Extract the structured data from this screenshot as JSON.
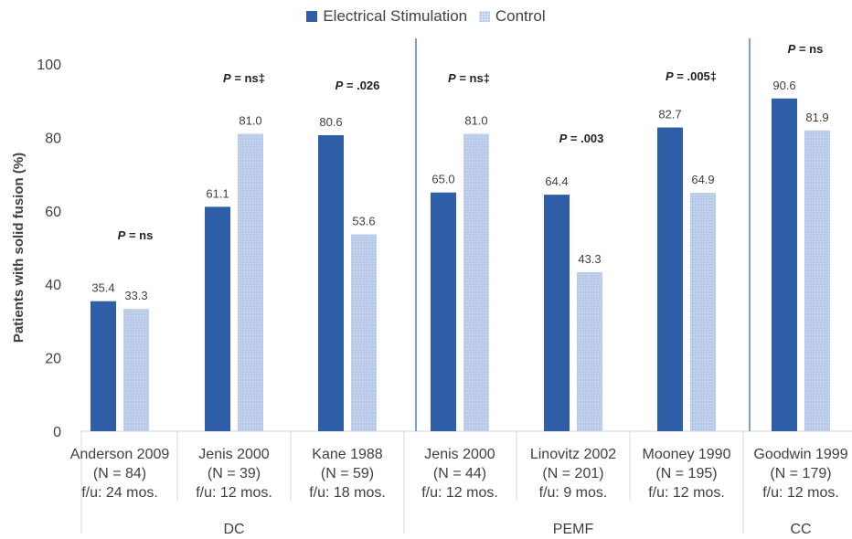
{
  "legend": {
    "series1": "Electrical Stimulation",
    "series2": "Control"
  },
  "colors": {
    "electrical_stimulation": "#2e5ea8",
    "control": "#b9cbe8",
    "axis_text": "#404040",
    "separator": "#4f7fc4"
  },
  "chart_data": {
    "type": "bar",
    "ylabel": "Patients with solid fusion (%)",
    "xlabel": "",
    "ylim": [
      0,
      100
    ],
    "yticks": [
      0,
      20,
      40,
      60,
      80,
      100
    ],
    "grid": false,
    "legend_position": "top",
    "categories": [
      {
        "lines": [
          "Anderson 2009",
          "(N = 84)",
          "f/u: 24 mos."
        ],
        "p_label": "P = ns"
      },
      {
        "lines": [
          "Jenis 2000",
          "(N = 39)",
          "f/u: 12 mos."
        ],
        "p_label": "P = ns‡"
      },
      {
        "lines": [
          "Kane 1988",
          "(N = 59)",
          "f/u: 18 mos."
        ],
        "p_label": "P = .026"
      },
      {
        "lines": [
          "Jenis 2000",
          "(N = 44)",
          "f/u: 12 mos."
        ],
        "p_label": "P = ns‡"
      },
      {
        "lines": [
          "Linovitz 2002",
          "(N = 201)",
          "f/u: 9 mos."
        ],
        "p_label": "P = .003"
      },
      {
        "lines": [
          "Mooney 1990",
          "(N = 195)",
          "f/u: 12 mos."
        ],
        "p_label": "P = .005‡"
      },
      {
        "lines": [
          "Goodwin 1999",
          "(N = 179)",
          "f/u: 12 mos."
        ],
        "p_label": "P = ns"
      }
    ],
    "groups": [
      {
        "label": "DC",
        "category_indices": [
          0,
          1,
          2
        ]
      },
      {
        "label": "PEMF",
        "category_indices": [
          3,
          4,
          5
        ]
      },
      {
        "label": "CC",
        "category_indices": [
          6
        ]
      }
    ],
    "series": [
      {
        "name": "Electrical Stimulation",
        "values": [
          35.4,
          61.1,
          80.6,
          65.0,
          64.4,
          82.7,
          90.6
        ],
        "labels": [
          "35.4",
          "61.1",
          "80.6",
          "65.0",
          "64.4",
          "82.7",
          "90.6"
        ]
      },
      {
        "name": "Control",
        "values": [
          33.3,
          81.0,
          53.6,
          81.0,
          43.3,
          64.9,
          81.9
        ],
        "labels": [
          "33.3",
          "81.0",
          "53.6",
          "81.0",
          "43.3",
          "64.9",
          "81.9"
        ]
      }
    ]
  }
}
